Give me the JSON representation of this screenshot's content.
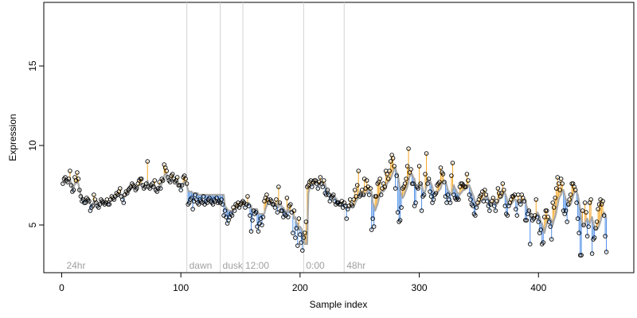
{
  "chart_data": {
    "type": "scatter",
    "title": "",
    "xlabel": "Sample index",
    "ylabel": "Expression",
    "xlim": [
      -15,
      480
    ],
    "ylim": [
      2,
      19
    ],
    "x_ticks": [
      0,
      100,
      200,
      300,
      400
    ],
    "y_ticks": [
      5,
      10,
      15
    ],
    "x_tick_labels": [
      "0",
      "100",
      "200",
      "300",
      "400"
    ],
    "y_tick_labels": [
      "5",
      "10",
      "15"
    ],
    "grid": false,
    "legend": "none",
    "colors": {
      "points": "#000000",
      "fit_line": "#a9a9a9",
      "residual_positive": "#f5a623",
      "residual_negative": "#4f8fe6",
      "phase_line": "#d3d3d3",
      "phase_label": "#a0a0a0"
    },
    "phase_markers": [
      {
        "x": 2,
        "label": "24hr",
        "line": false
      },
      {
        "x": 105,
        "label": "dawn",
        "line": true
      },
      {
        "x": 133,
        "label": "dusk",
        "line": true
      },
      {
        "x": 152,
        "label": "12:00",
        "line": true
      },
      {
        "x": 203,
        "label": "0:00",
        "line": true
      },
      {
        "x": 237,
        "label": "48hr",
        "line": true
      }
    ],
    "series": [
      {
        "x_start": 1,
        "x_step": 1,
        "observed": [
          7.6,
          7.9,
          8,
          7.8,
          7.7,
          7.9,
          8.4,
          7.5,
          7.1,
          7.2,
          8,
          7.8,
          8.3,
          7.9,
          7.2,
          6.8,
          6.5,
          6.6,
          6.4,
          6.4,
          6.7,
          6.6,
          6.5,
          5.9,
          6.1,
          6.2,
          6.9,
          6.6,
          6.4,
          6.2,
          6.1,
          6.3,
          6.6,
          6.5,
          6.4,
          6.3,
          6.4,
          6.6,
          6.3,
          6.3,
          6.6,
          6.8,
          6.7,
          6.6,
          6.8,
          7,
          6.9,
          7.1,
          7.3,
          6.8,
          6.6,
          6.4,
          6.9,
          7.1,
          7,
          7.2,
          7.3,
          7.4,
          7.6,
          7.5,
          7.4,
          7.2,
          7.3,
          7.6,
          7.8,
          7.9,
          7.9,
          7.5,
          7.3,
          7.4,
          7.6,
          9,
          7.4,
          7.3,
          7.5,
          7.6,
          7.4,
          7.8,
          7.2,
          7.1,
          7.3,
          7.7,
          7.3,
          7.9,
          7.8,
          8.8,
          8.6,
          8.4,
          8,
          7.8,
          7.7,
          8.1,
          8.2,
          7.9,
          7.7,
          7.8,
          8,
          7.5,
          7.5,
          7.2,
          7.5,
          8,
          8.1,
          7.9,
          7.6,
          6.3,
          6.4,
          6.6,
          6.7,
          6,
          6.5,
          6.9,
          6.6,
          6.4,
          6.3,
          6.6,
          6.5,
          6.4,
          6.8,
          6.3,
          6.5,
          6.4,
          6.6,
          6.7,
          6.5,
          6.4,
          6.3,
          6.6,
          6.5,
          6.7,
          6.4,
          6.5,
          6.4,
          6.6,
          6.3,
          5.6,
          5.9,
          5.5,
          5.1,
          5.3,
          5.5,
          5.7,
          5.6,
          6.1,
          5.9,
          6.3,
          6.2,
          6.4,
          6.1,
          6.3,
          6.4,
          6.5,
          6.4,
          6.1,
          6.3,
          6.8,
          6.2,
          5.6,
          4.6,
          5.3,
          5.9,
          5.7,
          5.8,
          4.9,
          4.6,
          5.1,
          5.4,
          5,
          5.5,
          6.5,
          6.7,
          6.9,
          6.6,
          6.4,
          6.6,
          6.5,
          6.3,
          6.3,
          6.1,
          6.6,
          5.8,
          7.4,
          6.4,
          5.9,
          5.9,
          5.5,
          5.7,
          5.6,
          6.7,
          5.5,
          6.2,
          6.3,
          5.8,
          4.5,
          5.9,
          4.2,
          4.8,
          3.7,
          5.4,
          4.4,
          3.9,
          3.4,
          4.2,
          4.5,
          5.2,
          7.4,
          7.5,
          7.7,
          7.8,
          7.4,
          7.7,
          7.8,
          7.8,
          7.6,
          7.3,
          7.7,
          8,
          7.6,
          7.4,
          7.8,
          7,
          6.9,
          7.2,
          6.9,
          6.5,
          6.7,
          6.8,
          6.9,
          6.5,
          6.3,
          6.4,
          6.4,
          6.3,
          6.3,
          6.5,
          6.1,
          6.4,
          6.2,
          5.4,
          6,
          6.2,
          6.6,
          6.3,
          6.2,
          6.6,
          7.2,
          6.8,
          7.5,
          8.4,
          6.8,
          6.9,
          7.2,
          6.9,
          7.9,
          7.3,
          7.8,
          7.4,
          6.9,
          7.3,
          4.7,
          5.4,
          4.9,
          6.8,
          6.8,
          7.6,
          7.7,
          7.9,
          6.9,
          7.3,
          7.6,
          7.4,
          8.4,
          8.2,
          7.9,
          8.4,
          9,
          9.4,
          9.2,
          8.7,
          7.3,
          8.1,
          5.8,
          5.2,
          5.3,
          6.1,
          7.3,
          7.4,
          7.6,
          7.9,
          8.7,
          9.8,
          8.3,
          8.5,
          7.6,
          7.6,
          6.2,
          6.4,
          7.4,
          7.3,
          8.7,
          7.6,
          5.9,
          6.8,
          6.9,
          8.2,
          9.5,
          7.6,
          7.9,
          7.1,
          6.8,
          6.4,
          6.6,
          6.9,
          7,
          7.5,
          7.6,
          7.7,
          8.6,
          8.3,
          8.2,
          7.7,
          6.8,
          6.4,
          6.9,
          6.6,
          6.4,
          8.1,
          8.9,
          6.9,
          6.7,
          6.6,
          6.7,
          6.6,
          7.4,
          7.6,
          7.6,
          7.5,
          7.4,
          7.4,
          8.2,
          7.8,
          6.9,
          6.6,
          6.3,
          6.2,
          5.7,
          5.6,
          6.1,
          6.4,
          6.6,
          6.8,
          6.9,
          7.1,
          6.5,
          7.2,
          6.9,
          6.5,
          6.2,
          5.9,
          6.3,
          6.5,
          6.7,
          6.2,
          5.9,
          6.5,
          7.3,
          7,
          6.8,
          7,
          7.6,
          7.2,
          6.2,
          5.7,
          5.6,
          6.2,
          6.4,
          6.6,
          6.8,
          6.8,
          6.9,
          6,
          5.6,
          6.9,
          6.5,
          6.3,
          6.9,
          6.7,
          6.5,
          5.3,
          5.3,
          5.7,
          5.9,
          3.8,
          5.6,
          5.3,
          5.4,
          5.6,
          6.6,
          5.5,
          5.2,
          4.5,
          4.7,
          3.8,
          3.9,
          5.5,
          5.9,
          5.9,
          5.5,
          5.2,
          4.9,
          4.1,
          6.4,
          6.1,
          6.7,
          7.3,
          8,
          7.6,
          7.2,
          7.9,
          7.6,
          5.9,
          5.7,
          5.9,
          5.2,
          6.3,
          6.6,
          6.9,
          7.6,
          7.6,
          7.4,
          7.2,
          6.4,
          5.4,
          4.5,
          3.1,
          3.1,
          5.9,
          5,
          6.4,
          5.8,
          4.3,
          4.9,
          6.4,
          6.6,
          3.2,
          4.1,
          4.2,
          4.8,
          5.2,
          6,
          6.3,
          6.6,
          6.3,
          6.5,
          5.6,
          4.3,
          3.3
        ],
        "fitted": [
          7.6,
          7.8,
          7.9,
          7.8,
          7.8,
          7.8,
          7.9,
          7.6,
          7.3,
          7.3,
          7.6,
          7.6,
          7.7,
          7.6,
          7.2,
          6.9,
          6.7,
          6.7,
          6.6,
          6.5,
          6.6,
          6.6,
          6.5,
          6.3,
          6.3,
          6.3,
          6.5,
          6.5,
          6.4,
          6.3,
          6.3,
          6.3,
          6.5,
          6.5,
          6.4,
          6.4,
          6.4,
          6.5,
          6.4,
          6.4,
          6.5,
          6.6,
          6.6,
          6.6,
          6.7,
          6.8,
          6.8,
          6.9,
          7,
          6.9,
          6.8,
          6.7,
          6.8,
          6.9,
          7,
          7.1,
          7.2,
          7.3,
          7.4,
          7.4,
          7.4,
          7.3,
          7.3,
          7.4,
          7.5,
          7.6,
          7.6,
          7.5,
          7.4,
          7.4,
          7.5,
          7.8,
          7.5,
          7.4,
          7.4,
          7.5,
          7.4,
          7.5,
          7.3,
          7.2,
          7.3,
          7.5,
          7.4,
          7.6,
          7.7,
          8.1,
          8.2,
          8.2,
          8,
          7.9,
          7.8,
          7.9,
          7.9,
          7.8,
          7.7,
          7.7,
          7.8,
          7.6,
          7.5,
          7.4,
          7.5,
          7.6,
          7.7,
          7.6,
          7.5,
          7.2,
          7.1,
          7.1,
          7.1,
          7,
          7,
          7,
          7,
          7,
          6.9,
          6.9,
          6.9,
          6.9,
          6.9,
          6.9,
          6.9,
          6.9,
          6.9,
          6.9,
          6.9,
          6.9,
          6.9,
          6.9,
          6.9,
          6.9,
          6.9,
          6.9,
          6.9,
          6.9,
          6.9,
          6.9,
          6.2,
          6.1,
          6,
          5.9,
          5.9,
          5.9,
          5.9,
          5.9,
          6,
          6,
          6.1,
          6.1,
          6.2,
          6.2,
          6.2,
          6.3,
          6.3,
          6.3,
          6.3,
          6.3,
          6.4,
          6.3,
          6.2,
          5.9,
          5.9,
          6,
          6,
          6,
          5.7,
          5.7,
          5.7,
          5.7,
          5.7,
          5.7,
          6,
          6.2,
          6.4,
          6.4,
          6.4,
          6.4,
          6.4,
          6.3,
          6.3,
          6.2,
          6.3,
          6.1,
          6.4,
          6.3,
          6.1,
          6.1,
          5.9,
          5.9,
          5.8,
          6,
          5.8,
          5.9,
          5.9,
          5.8,
          5.4,
          5.5,
          5.1,
          5.1,
          4.7,
          4.9,
          4.8,
          4.6,
          4.3,
          3.8,
          3.8,
          3.8,
          7,
          7.3,
          7.5,
          7.6,
          7.5,
          7.6,
          7.6,
          7.7,
          7.6,
          7.5,
          7.6,
          7.7,
          7.6,
          7.5,
          7.6,
          7.3,
          7.1,
          7.1,
          7,
          6.8,
          6.8,
          6.8,
          6.8,
          6.7,
          6.6,
          6.5,
          6.5,
          6.4,
          6.4,
          6.4,
          6.3,
          6.3,
          6.3,
          6.1,
          6.1,
          6.1,
          6.2,
          6.2,
          6.2,
          6.3,
          6.5,
          6.6,
          6.8,
          7.1,
          7,
          6.9,
          6.9,
          6.8,
          7,
          7,
          7.2,
          7.2,
          7.1,
          7.1,
          6.4,
          6.2,
          5.9,
          6.1,
          6.3,
          6.6,
          6.9,
          7.1,
          7.1,
          7.1,
          7.2,
          7.3,
          7.6,
          7.7,
          7.8,
          7.9,
          8.1,
          8.3,
          8.5,
          8.6,
          8.3,
          8.2,
          7.7,
          7.2,
          6.9,
          6.7,
          6.8,
          7,
          7.2,
          7.4,
          7.7,
          8.1,
          8.1,
          8.2,
          8,
          7.9,
          7.5,
          7.3,
          7.3,
          7.3,
          7.6,
          7.6,
          7.2,
          7.1,
          7.1,
          7.4,
          7.9,
          7.8,
          7.8,
          7.6,
          7.4,
          7.1,
          7,
          7,
          7,
          7.1,
          7.2,
          7.3,
          7.6,
          7.7,
          7.8,
          7.7,
          7.5,
          7.2,
          7.1,
          7,
          6.9,
          7.2,
          7.5,
          7.3,
          7.2,
          7,
          7,
          6.9,
          7,
          7.1,
          7.2,
          7.2,
          7.3,
          7.3,
          7.5,
          7.5,
          7.3,
          7.1,
          6.9,
          6.7,
          6.4,
          6.2,
          6.2,
          6.3,
          6.4,
          6.5,
          6.6,
          6.7,
          6.6,
          6.8,
          6.8,
          6.7,
          6.5,
          6.3,
          6.3,
          6.4,
          6.5,
          6.4,
          6.3,
          6.4,
          6.6,
          6.7,
          6.7,
          6.8,
          7,
          7,
          6.8,
          6.5,
          6.3,
          6.3,
          6.3,
          6.4,
          6.5,
          6.6,
          6.6,
          6.5,
          6.3,
          6.5,
          6.5,
          6.4,
          6.5,
          6.6,
          6.6,
          6.2,
          6,
          5.9,
          5.9,
          5.5,
          5.5,
          5.5,
          5.4,
          5.5,
          5.8,
          5.7,
          5.5,
          5.2,
          5.1,
          4.8,
          4.5,
          4.8,
          5.1,
          5.3,
          5.4,
          5.4,
          5.3,
          5,
          5.3,
          5.5,
          5.8,
          6.2,
          6.6,
          6.8,
          6.9,
          7.1,
          7.2,
          6.9,
          6.6,
          6.5,
          6.2,
          6.2,
          6.3,
          6.5,
          6.8,
          7,
          7.1,
          7.1,
          6.9,
          6.5,
          6,
          5.4,
          4.9,
          5,
          5,
          5.3,
          5.4,
          5.2,
          5.1,
          5.3,
          5.5,
          5.1,
          4.9,
          4.7,
          4.7,
          4.8,
          5,
          5.2,
          5.5,
          5.6,
          5.8,
          5.7,
          5.4,
          5
        ]
      }
    ]
  }
}
